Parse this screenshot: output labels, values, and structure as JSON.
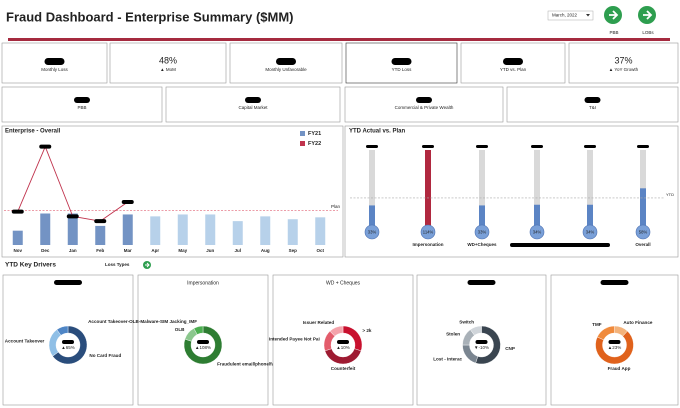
{
  "header": {
    "title": "Fraud Dashboard - Enterprise Summary ($MM)",
    "period": "March, 2022",
    "buttons": [
      "PBB",
      "LOBs"
    ]
  },
  "kpis": [
    {
      "label": "Monthly Loss"
    },
    {
      "value": "48%",
      "change": "▲ MoM"
    },
    {
      "label": "Monthly Unfavorable"
    },
    {
      "label": "YTD Loss"
    },
    {
      "label": "YTD vs. Plan"
    },
    {
      "value": "37%",
      "change": "▲ YoY Growth"
    }
  ],
  "segments": [
    "PBB",
    "Capital Market",
    "Commercial & Private Wealth",
    "T&I"
  ],
  "drivers": {
    "title": "YTD Key Drivers",
    "filter": "Loss Types"
  },
  "chart_data": [
    {
      "type": "bar",
      "title": "Enterprise - Overall",
      "categories": [
        "Nov",
        "Dec",
        "Jan",
        "Feb",
        "Mar",
        "Apr",
        "May",
        "Jun",
        "Jul",
        "Aug",
        "Sep",
        "Oct"
      ],
      "series": [
        {
          "name": "FY21",
          "color": "#7393c4",
          "colors": [
            "#7393c4",
            "#7393c4",
            "#7393c4",
            "#7393c4",
            "#7393c4",
            "#b7d1ea",
            "#b7d1ea",
            "#b7d1ea",
            "#b7d1ea",
            "#b7d1ea",
            "#b7d1ea",
            "#b7d1ea"
          ],
          "values": [
            15,
            33,
            33,
            20,
            32,
            30,
            32,
            32,
            25,
            30,
            27,
            29
          ]
        },
        {
          "name": "FY22",
          "color": "#c0334d",
          "values": [
            35,
            103,
            30,
            25,
            45,
            null,
            null,
            null,
            null,
            null,
            null,
            null
          ]
        }
      ],
      "plan": 36,
      "plan_label": "Plan",
      "ylim": [
        0,
        110
      ]
    },
    {
      "type": "thermometer",
      "title": "YTD Actual vs. Plan",
      "categories": [
        null,
        "Impersonation",
        "WD+Cheques",
        null,
        null,
        "Overall"
      ],
      "values": [
        33,
        114,
        33,
        34,
        34,
        58
      ],
      "value_labels": [
        "33%",
        "114%",
        "33%",
        "34%",
        "34%",
        "58%"
      ],
      "colors": [
        "#5b84c4",
        "#b0283f",
        "#5b84c4",
        "#5b84c4",
        "#5b84c4",
        "#5b84c4"
      ],
      "plan": 44,
      "plan_label": "YTD",
      "ylim": [
        0,
        114
      ]
    },
    {
      "type": "donut",
      "center_label": "▲65%",
      "labels": [
        "No Card Fraud",
        "Account Takeover",
        null
      ],
      "values": [
        65,
        25,
        10
      ],
      "colors": [
        "#2a4d7c",
        "#8fbfe6",
        "#4f86c6"
      ]
    },
    {
      "type": "donut",
      "title": "Impersonation",
      "center_label": "▲108%",
      "labels": [
        "Fraudulent email/phone/fax instructions",
        "OLB",
        "Account Takeover-OLB-Malware-SIM Jacking_IMF"
      ],
      "values": [
        80,
        12,
        8
      ],
      "colors": [
        "#2e7d32",
        "#8bc78d",
        "#4caf50"
      ]
    },
    {
      "type": "donut",
      "title": "WD + Cheques",
      "center_label": "▲10%",
      "labels": [
        "> 2k",
        "Counterfeit",
        "Intended Payee Not Pai",
        "Issuer Related"
      ],
      "values": [
        30,
        40,
        18,
        12
      ],
      "colors": [
        "#c8102e",
        "#9e1b32",
        "#e35c6b",
        "#f4a3ab"
      ]
    },
    {
      "type": "donut",
      "center_label": "▼-10%",
      "labels": [
        "CNP",
        "Lost - Interac",
        "Stolen",
        "Switch"
      ],
      "values": [
        55,
        20,
        15,
        10
      ],
      "colors": [
        "#3a4550",
        "#7a8590",
        "#a9b1b8",
        "#d0d5da"
      ]
    },
    {
      "type": "donut",
      "center_label": "▲23%",
      "labels": [
        "Auto Finance",
        "Fraud App",
        "TMF"
      ],
      "values": [
        12,
        70,
        18
      ],
      "colors": [
        "#f3b27a",
        "#e0621c",
        "#f08a3c"
      ]
    }
  ]
}
